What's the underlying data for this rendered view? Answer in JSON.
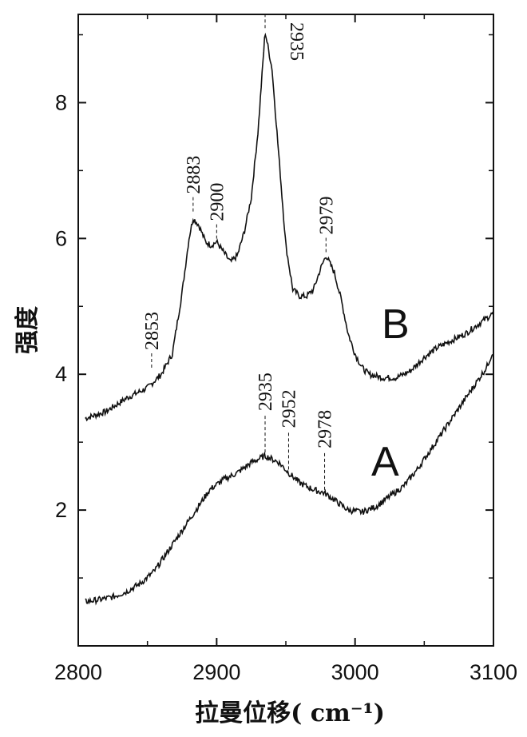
{
  "chart_data": {
    "type": "line",
    "title": "",
    "xlabel": "拉曼位移( cm⁻¹)",
    "ylabel": "强度",
    "xlim": [
      2800,
      3100
    ],
    "ylim": [
      0,
      9.3
    ],
    "x_ticks": [
      2800,
      2900,
      3000,
      3100
    ],
    "y_ticks": [
      2,
      4,
      6,
      8
    ],
    "grid": false,
    "series": [
      {
        "name": "B",
        "x": [
          2805,
          2820,
          2835,
          2850,
          2860,
          2868,
          2875,
          2880,
          2883,
          2887,
          2892,
          2896,
          2900,
          2905,
          2910,
          2915,
          2920,
          2925,
          2930,
          2935,
          2940,
          2945,
          2950,
          2955,
          2960,
          2965,
          2970,
          2975,
          2979,
          2985,
          2990,
          2995,
          3000,
          3005,
          3010,
          3020,
          3030,
          3040,
          3050,
          3060,
          3070,
          3080,
          3090,
          3100
        ],
        "y": [
          3.35,
          3.45,
          3.65,
          3.8,
          4.0,
          4.3,
          5.2,
          6.0,
          6.3,
          6.2,
          5.95,
          5.9,
          5.95,
          5.8,
          5.65,
          5.75,
          6.1,
          6.6,
          7.6,
          9.05,
          8.5,
          7.2,
          5.9,
          5.25,
          5.15,
          5.15,
          5.25,
          5.55,
          5.75,
          5.5,
          5.1,
          4.6,
          4.3,
          4.1,
          4.0,
          3.95,
          3.95,
          4.05,
          4.25,
          4.4,
          4.5,
          4.6,
          4.75,
          4.9
        ]
      },
      {
        "name": "A",
        "x": [
          2805,
          2815,
          2825,
          2835,
          2845,
          2855,
          2865,
          2875,
          2885,
          2895,
          2905,
          2915,
          2925,
          2935,
          2945,
          2952,
          2960,
          2970,
          2978,
          2985,
          2995,
          3005,
          3015,
          3025,
          3035,
          3045,
          3055,
          3065,
          3075,
          3085,
          3095,
          3100
        ],
        "y": [
          0.65,
          0.68,
          0.72,
          0.8,
          0.92,
          1.1,
          1.4,
          1.7,
          2.0,
          2.3,
          2.45,
          2.55,
          2.7,
          2.8,
          2.7,
          2.55,
          2.4,
          2.3,
          2.25,
          2.15,
          2.0,
          1.97,
          2.05,
          2.2,
          2.35,
          2.6,
          2.9,
          3.2,
          3.5,
          3.8,
          4.1,
          4.35
        ]
      }
    ],
    "annotations": [
      {
        "label": "2853",
        "x": 2853,
        "y": 4.05
      },
      {
        "label": "2883",
        "x": 2883,
        "y": 6.35
      },
      {
        "label": "2900",
        "x": 2900,
        "y": 5.95
      },
      {
        "label": "2935",
        "x": 2935,
        "y": 9.05
      },
      {
        "label": "2979",
        "x": 2979,
        "y": 5.75
      },
      {
        "label": "2935",
        "x": 2935,
        "y": 2.8
      },
      {
        "label": "2952",
        "x": 2952,
        "y": 2.55
      },
      {
        "label": "2978",
        "x": 2978,
        "y": 2.25
      }
    ]
  }
}
